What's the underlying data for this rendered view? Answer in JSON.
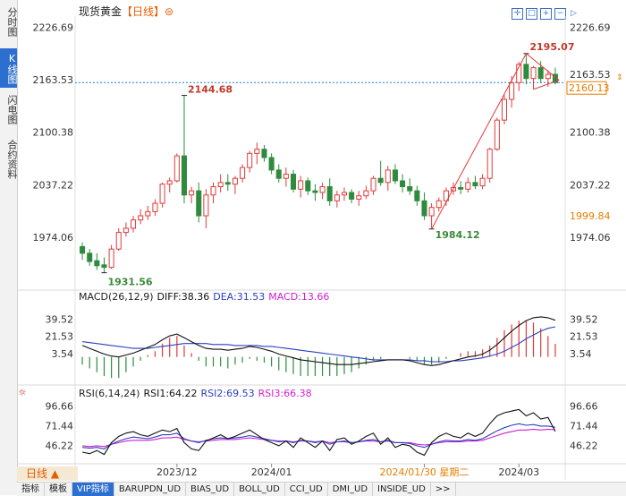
{
  "sidebar": {
    "tabs": [
      {
        "label": "分时图",
        "active": false
      },
      {
        "label": "K线图",
        "active": true
      },
      {
        "label": "闪电图",
        "active": false
      },
      {
        "label": "合约资料",
        "active": false
      }
    ]
  },
  "header": {
    "instrument": "现货黄金",
    "period": "【日线】",
    "settings_icon": "gear-icon",
    "tool_icons": [
      "crosshair-icon",
      "zoom-fit-icon",
      "zoom-in-icon",
      "zoom-out-icon",
      "expand-right-icon"
    ]
  },
  "colors": {
    "up": "#e23a3a",
    "down": "#2e8b3e",
    "last_price": "#1f7ae0",
    "diff": "#111111",
    "dea": "#2a3fbf",
    "macd": "#d020d0",
    "rsi1": "#111111",
    "rsi2": "#2a3fbf",
    "rsi3": "#d020d0",
    "cursor_highlight": "#e67e00"
  },
  "price_panel": {
    "y_ticks": [
      "2226.69",
      "2163.53",
      "2100.38",
      "2037.22",
      "1974.06"
    ],
    "last_price_label": "2160.13",
    "cursor_price_label": "1999.84",
    "annotations": {
      "high": "2144.68",
      "low": "1931.56",
      "low2": "1984.12",
      "high2": "2195.07"
    }
  },
  "macd_panel": {
    "label": "MACD(26,12,9)",
    "diff": "DIFF:38.36",
    "dea": "DEA:31.53",
    "macd": "MACD:13.66",
    "y_ticks": [
      "39.52",
      "21.53",
      "3.54"
    ]
  },
  "rsi_panel": {
    "label": "RSI(6,14,24)",
    "rsi1": "RSI1:64.22",
    "rsi2": "RSI2:69.53",
    "rsi3": "RSI3:66.38",
    "y_ticks": [
      "96.66",
      "71.44",
      "46.22"
    ],
    "icon": "sun-icon"
  },
  "x_axis": {
    "labels": [
      "2023/12",
      "2024/01",
      "2024/01/30 星期二",
      "2024/03"
    ]
  },
  "period_button": "日线 ▲",
  "bottom_tabs": [
    "指标",
    "模板",
    "VIP指标",
    "BARUPDN_UD",
    "BIAS_UD",
    "BOLL_UD",
    "CCI_UD",
    "DMI_UD",
    "INSIDE_UD",
    ">>"
  ],
  "chart_data": {
    "type": "candlestick",
    "title": "现货黄金 【日线】",
    "ylim": [
      1915,
      2240
    ],
    "candles": [
      {
        "o": 1963,
        "h": 1968,
        "l": 1947,
        "c": 1955
      },
      {
        "o": 1955,
        "h": 1960,
        "l": 1940,
        "c": 1945
      },
      {
        "o": 1946,
        "h": 1955,
        "l": 1935,
        "c": 1940
      },
      {
        "o": 1941,
        "h": 1950,
        "l": 1931.56,
        "c": 1938
      },
      {
        "o": 1938,
        "h": 1965,
        "l": 1936,
        "c": 1960
      },
      {
        "o": 1960,
        "h": 1985,
        "l": 1958,
        "c": 1980
      },
      {
        "o": 1980,
        "h": 1992,
        "l": 1975,
        "c": 1985
      },
      {
        "o": 1985,
        "h": 2000,
        "l": 1980,
        "c": 1995
      },
      {
        "o": 1995,
        "h": 2008,
        "l": 1990,
        "c": 2000
      },
      {
        "o": 2000,
        "h": 2012,
        "l": 1995,
        "c": 2005
      },
      {
        "o": 2005,
        "h": 2020,
        "l": 2000,
        "c": 2015
      },
      {
        "o": 2015,
        "h": 2040,
        "l": 2010,
        "c": 2038
      },
      {
        "o": 2038,
        "h": 2046,
        "l": 2028,
        "c": 2042
      },
      {
        "o": 2042,
        "h": 2075,
        "l": 2040,
        "c": 2072
      },
      {
        "o": 2072,
        "h": 2144.68,
        "l": 2015,
        "c": 2025
      },
      {
        "o": 2025,
        "h": 2035,
        "l": 2015,
        "c": 2030
      },
      {
        "o": 2030,
        "h": 2040,
        "l": 1992,
        "c": 2000
      },
      {
        "o": 2000,
        "h": 2032,
        "l": 1985,
        "c": 2025
      },
      {
        "o": 2025,
        "h": 2040,
        "l": 2015,
        "c": 2035
      },
      {
        "o": 2035,
        "h": 2050,
        "l": 2028,
        "c": 2040
      },
      {
        "o": 2040,
        "h": 2050,
        "l": 2030,
        "c": 2038
      },
      {
        "o": 2038,
        "h": 2048,
        "l": 2026,
        "c": 2045
      },
      {
        "o": 2045,
        "h": 2062,
        "l": 2040,
        "c": 2058
      },
      {
        "o": 2058,
        "h": 2078,
        "l": 2052,
        "c": 2075
      },
      {
        "o": 2075,
        "h": 2088,
        "l": 2062,
        "c": 2080
      },
      {
        "o": 2080,
        "h": 2085,
        "l": 2065,
        "c": 2070
      },
      {
        "o": 2070,
        "h": 2075,
        "l": 2050,
        "c": 2055
      },
      {
        "o": 2055,
        "h": 2062,
        "l": 2040,
        "c": 2045
      },
      {
        "o": 2045,
        "h": 2058,
        "l": 2035,
        "c": 2050
      },
      {
        "o": 2050,
        "h": 2055,
        "l": 2028,
        "c": 2032
      },
      {
        "o": 2032,
        "h": 2048,
        "l": 2022,
        "c": 2042
      },
      {
        "o": 2042,
        "h": 2046,
        "l": 2025,
        "c": 2030
      },
      {
        "o": 2030,
        "h": 2038,
        "l": 2018,
        "c": 2028
      },
      {
        "o": 2028,
        "h": 2040,
        "l": 2020,
        "c": 2035
      },
      {
        "o": 2035,
        "h": 2045,
        "l": 2012,
        "c": 2018
      },
      {
        "o": 2018,
        "h": 2030,
        "l": 2010,
        "c": 2025
      },
      {
        "o": 2025,
        "h": 2034,
        "l": 2018,
        "c": 2028
      },
      {
        "o": 2028,
        "h": 2032,
        "l": 2015,
        "c": 2020
      },
      {
        "o": 2020,
        "h": 2030,
        "l": 2012,
        "c": 2024
      },
      {
        "o": 2024,
        "h": 2036,
        "l": 2020,
        "c": 2030
      },
      {
        "o": 2030,
        "h": 2048,
        "l": 2025,
        "c": 2045
      },
      {
        "o": 2045,
        "h": 2066,
        "l": 2036,
        "c": 2040
      },
      {
        "o": 2040,
        "h": 2060,
        "l": 2030,
        "c": 2055
      },
      {
        "o": 2055,
        "h": 2062,
        "l": 2038,
        "c": 2042
      },
      {
        "o": 2042,
        "h": 2050,
        "l": 2028,
        "c": 2035
      },
      {
        "o": 2035,
        "h": 2045,
        "l": 2025,
        "c": 2030
      },
      {
        "o": 2030,
        "h": 2036,
        "l": 2012,
        "c": 2018
      },
      {
        "o": 2018,
        "h": 2028,
        "l": 1995,
        "c": 2000
      },
      {
        "o": 2000,
        "h": 2015,
        "l": 1984.12,
        "c": 2010
      },
      {
        "o": 2010,
        "h": 2022,
        "l": 2005,
        "c": 2018
      },
      {
        "o": 2018,
        "h": 2034,
        "l": 2012,
        "c": 2030
      },
      {
        "o": 2030,
        "h": 2040,
        "l": 2025,
        "c": 2034
      },
      {
        "o": 2034,
        "h": 2042,
        "l": 2026,
        "c": 2032
      },
      {
        "o": 2032,
        "h": 2046,
        "l": 2028,
        "c": 2040
      },
      {
        "o": 2040,
        "h": 2048,
        "l": 2032,
        "c": 2036
      },
      {
        "o": 2036,
        "h": 2050,
        "l": 2032,
        "c": 2045
      },
      {
        "o": 2045,
        "h": 2082,
        "l": 2040,
        "c": 2080
      },
      {
        "o": 2080,
        "h": 2118,
        "l": 2078,
        "c": 2115
      },
      {
        "o": 2115,
        "h": 2145,
        "l": 2110,
        "c": 2140
      },
      {
        "o": 2140,
        "h": 2168,
        "l": 2130,
        "c": 2160
      },
      {
        "o": 2160,
        "h": 2185,
        "l": 2150,
        "c": 2182
      },
      {
        "o": 2182,
        "h": 2195.07,
        "l": 2158,
        "c": 2165
      },
      {
        "o": 2165,
        "h": 2180,
        "l": 2152,
        "c": 2178
      },
      {
        "o": 2178,
        "h": 2186,
        "l": 2160,
        "c": 2165
      },
      {
        "o": 2165,
        "h": 2175,
        "l": 2155,
        "c": 2170
      },
      {
        "o": 2170,
        "h": 2178,
        "l": 2158,
        "c": 2160.13
      }
    ],
    "macd": {
      "ylim": [
        -20,
        55
      ],
      "diff": [
        12,
        9,
        6,
        3,
        1,
        0,
        2,
        4,
        7,
        10,
        13,
        18,
        22,
        24,
        20,
        16,
        12,
        9,
        8,
        8,
        7,
        8,
        9,
        11,
        10,
        8,
        6,
        3,
        1,
        -1,
        -3,
        -4,
        -5,
        -6,
        -7,
        -8,
        -8,
        -8,
        -7,
        -6,
        -5,
        -4,
        -3,
        -3,
        -3,
        -4,
        -6,
        -8,
        -9,
        -8,
        -6,
        -4,
        -2,
        0,
        1,
        3,
        7,
        13,
        20,
        27,
        33,
        38,
        41,
        42,
        41,
        38.36
      ],
      "dea": [
        16,
        15,
        14,
        13,
        12,
        11,
        10,
        9,
        9,
        9,
        10,
        11,
        12,
        13,
        14,
        14,
        14,
        14,
        13,
        13,
        13,
        12,
        12,
        12,
        12,
        11,
        11,
        10,
        9,
        8,
        7,
        6,
        5,
        4,
        3,
        2,
        1,
        0,
        -1,
        -2,
        -3,
        -3,
        -3,
        -3,
        -3,
        -3,
        -4,
        -4,
        -5,
        -5,
        -5,
        -4,
        -4,
        -3,
        -2,
        -1,
        1,
        3,
        6,
        10,
        14,
        19,
        23,
        27,
        30,
        31.53
      ],
      "hist": [
        -8,
        -12,
        -16,
        -20,
        -22,
        -22,
        -16,
        -10,
        -4,
        2,
        6,
        14,
        20,
        22,
        12,
        4,
        -4,
        -10,
        -10,
        -10,
        -12,
        -8,
        -6,
        -2,
        -4,
        -6,
        -10,
        -14,
        -16,
        -18,
        -20,
        -20,
        -20,
        -20,
        -20,
        -20,
        -18,
        -16,
        -12,
        -8,
        -4,
        -2,
        0,
        0,
        0,
        -2,
        -4,
        -8,
        -8,
        -6,
        -2,
        0,
        4,
        6,
        6,
        8,
        12,
        20,
        28,
        34,
        38,
        38,
        36,
        30,
        22,
        13.66
      ]
    },
    "rsi": {
      "ylim": [
        30,
        105
      ],
      "rsi1": [
        38,
        36,
        40,
        35,
        50,
        58,
        62,
        64,
        60,
        58,
        62,
        66,
        64,
        68,
        50,
        42,
        40,
        52,
        56,
        60,
        55,
        58,
        62,
        66,
        60,
        54,
        50,
        46,
        52,
        44,
        56,
        50,
        44,
        52,
        40,
        54,
        56,
        48,
        52,
        58,
        62,
        48,
        56,
        44,
        48,
        46,
        38,
        34,
        50,
        58,
        62,
        58,
        56,
        62,
        58,
        62,
        74,
        84,
        88,
        90,
        92,
        84,
        88,
        80,
        82,
        64.22
      ],
      "rsi2": [
        44,
        43,
        44,
        42,
        48,
        52,
        55,
        57,
        56,
        55,
        57,
        60,
        60,
        62,
        55,
        52,
        50,
        53,
        55,
        56,
        55,
        56,
        57,
        59,
        57,
        55,
        53,
        51,
        52,
        50,
        53,
        52,
        50,
        52,
        48,
        51,
        52,
        50,
        51,
        53,
        54,
        51,
        53,
        50,
        50,
        49,
        46,
        44,
        48,
        51,
        53,
        52,
        52,
        54,
        53,
        55,
        60,
        65,
        69,
        72,
        74,
        72,
        73,
        71,
        71,
        69.53
      ],
      "rsi3": [
        46,
        45,
        46,
        45,
        48,
        50,
        52,
        53,
        53,
        53,
        54,
        56,
        56,
        57,
        54,
        52,
        51,
        52,
        53,
        54,
        54,
        54,
        55,
        56,
        55,
        54,
        53,
        52,
        52,
        51,
        52,
        52,
        51,
        52,
        50,
        51,
        51,
        50,
        51,
        52,
        52,
        51,
        52,
        50,
        50,
        50,
        48,
        47,
        48,
        50,
        51,
        51,
        51,
        52,
        52,
        53,
        56,
        59,
        62,
        64,
        66,
        66,
        67,
        66,
        67,
        66.38
      ]
    }
  }
}
